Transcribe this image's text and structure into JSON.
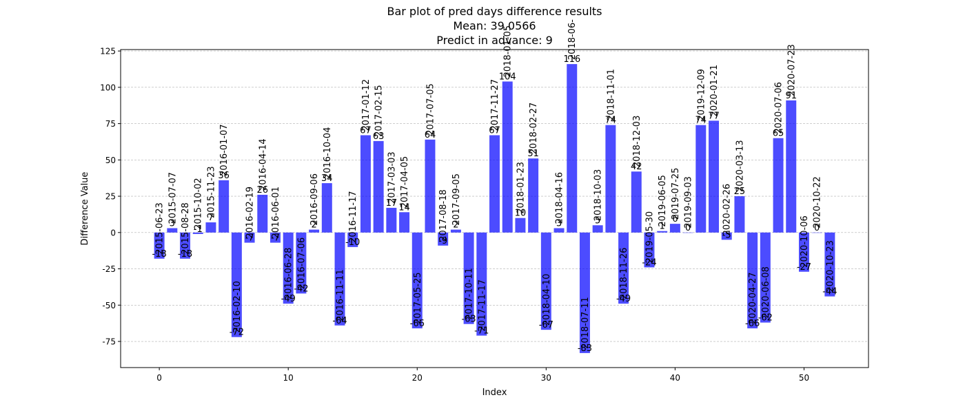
{
  "chart_data": {
    "type": "bar",
    "title_lines": [
      "Bar plot of pred days difference results",
      "Mean: 39.0566",
      "Predict in advance: 9"
    ],
    "xlabel": "Index",
    "ylabel": "Difference Value",
    "xlim": [
      -3,
      55
    ],
    "ylim": [
      -93,
      126
    ],
    "xticks": [
      0,
      10,
      20,
      30,
      40,
      50
    ],
    "yticks": [
      -75,
      -50,
      -25,
      0,
      25,
      50,
      75,
      100,
      125
    ],
    "grid": "y-dashed",
    "bar_color": "#0000ff",
    "x": [
      0,
      1,
      2,
      3,
      4,
      5,
      6,
      7,
      8,
      9,
      10,
      11,
      12,
      13,
      14,
      15,
      16,
      17,
      18,
      19,
      20,
      21,
      22,
      23,
      24,
      25,
      26,
      27,
      28,
      29,
      30,
      31,
      32,
      33,
      34,
      35,
      36,
      37,
      38,
      39,
      40,
      41,
      42,
      43,
      44,
      45,
      46,
      47,
      48,
      49,
      50,
      51,
      52
    ],
    "values": [
      -18,
      3,
      -18,
      -1,
      7,
      36,
      -72,
      -7,
      26,
      -7,
      -49,
      -42,
      2,
      34,
      -64,
      -10,
      67,
      63,
      17,
      14,
      -66,
      64,
      -9,
      2,
      -63,
      -71,
      67,
      104,
      10,
      51,
      -67,
      3,
      116,
      -83,
      5,
      74,
      -49,
      42,
      -24,
      1,
      6,
      0,
      74,
      77,
      -5,
      25,
      -66,
      -62,
      65,
      91,
      -27,
      0,
      -44
    ],
    "dates": [
      "2015-06-23",
      "2015-07-07",
      "2015-08-28",
      "2015-10-02",
      "2015-11-23",
      "2016-01-07",
      "2016-02-10",
      "2016-02-19",
      "2016-04-14",
      "2016-06-01",
      "2016-06-28",
      "2016-07-06",
      "2016-09-06",
      "2016-10-04",
      "2016-11-11",
      "2016-11-17",
      "2017-01-12",
      "2017-02-15",
      "2017-03-03",
      "2017-04-05",
      "2017-05-25",
      "2017-07-05",
      "2017-08-18",
      "2017-09-05",
      "2017-10-11",
      "2017-11-17",
      "2017-11-27",
      "2018-01-05",
      "2018-01-23",
      "2018-02-27",
      "2018-04-10",
      "2018-04-16",
      "2018-06-",
      "2018-07-11",
      "2018-10-03",
      "2018-11-01",
      "2018-11-26",
      "2018-12-03",
      "2019-05-30",
      "2019-06-05",
      "2019-07-25",
      "2019-09-03",
      "2019-12-09",
      "2020-01-21",
      "2020-02-26",
      "2020-03-13",
      "2020-04-27",
      "2020-06-08",
      "2020-07-06",
      "2020-07-23",
      "2020-10-06",
      "2020-10-22",
      "2020-10-23"
    ]
  }
}
